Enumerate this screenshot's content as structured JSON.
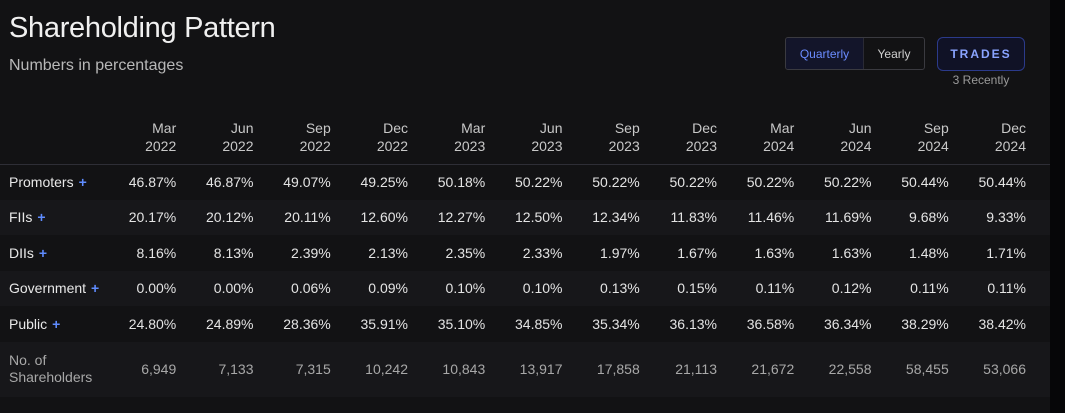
{
  "header": {
    "title": "Shareholding Pattern",
    "subtitle": "Numbers in percentages"
  },
  "period_toggle": {
    "options": [
      "Quarterly",
      "Yearly"
    ],
    "selected": "Quarterly"
  },
  "trades": {
    "label": "TRADES",
    "recent": "3 Recently"
  },
  "colors": {
    "accent": "#6b8cff",
    "plus": "#5f8cff"
  },
  "table": {
    "columns": [
      {
        "month": "Mar",
        "year": "2022"
      },
      {
        "month": "Jun",
        "year": "2022"
      },
      {
        "month": "Sep",
        "year": "2022"
      },
      {
        "month": "Dec",
        "year": "2022"
      },
      {
        "month": "Mar",
        "year": "2023"
      },
      {
        "month": "Jun",
        "year": "2023"
      },
      {
        "month": "Sep",
        "year": "2023"
      },
      {
        "month": "Dec",
        "year": "2023"
      },
      {
        "month": "Mar",
        "year": "2024"
      },
      {
        "month": "Jun",
        "year": "2024"
      },
      {
        "month": "Sep",
        "year": "2024"
      },
      {
        "month": "Dec",
        "year": "2024"
      }
    ],
    "rows": [
      {
        "label": "Promoters",
        "expandable": true,
        "values": [
          "46.87%",
          "46.87%",
          "49.07%",
          "49.25%",
          "50.18%",
          "50.22%",
          "50.22%",
          "50.22%",
          "50.22%",
          "50.22%",
          "50.44%",
          "50.44%"
        ]
      },
      {
        "label": "FIIs",
        "expandable": true,
        "values": [
          "20.17%",
          "20.12%",
          "20.11%",
          "12.60%",
          "12.27%",
          "12.50%",
          "12.34%",
          "11.83%",
          "11.46%",
          "11.69%",
          "9.68%",
          "9.33%"
        ]
      },
      {
        "label": "DIIs",
        "expandable": true,
        "values": [
          "8.16%",
          "8.13%",
          "2.39%",
          "2.13%",
          "2.35%",
          "2.33%",
          "1.97%",
          "1.67%",
          "1.63%",
          "1.63%",
          "1.48%",
          "1.71%"
        ]
      },
      {
        "label": "Government",
        "expandable": true,
        "values": [
          "0.00%",
          "0.00%",
          "0.06%",
          "0.09%",
          "0.10%",
          "0.10%",
          "0.13%",
          "0.15%",
          "0.11%",
          "0.12%",
          "0.11%",
          "0.11%"
        ]
      },
      {
        "label": "Public",
        "expandable": true,
        "values": [
          "24.80%",
          "24.89%",
          "28.36%",
          "35.91%",
          "35.10%",
          "34.85%",
          "35.34%",
          "36.13%",
          "36.58%",
          "36.34%",
          "38.29%",
          "38.42%"
        ]
      }
    ],
    "shareholders": {
      "label_line1": "No. of",
      "label_line2": "Shareholders",
      "values": [
        "6,949",
        "7,133",
        "7,315",
        "10,242",
        "10,843",
        "13,917",
        "17,858",
        "21,113",
        "21,672",
        "22,558",
        "58,455",
        "53,066"
      ]
    }
  }
}
